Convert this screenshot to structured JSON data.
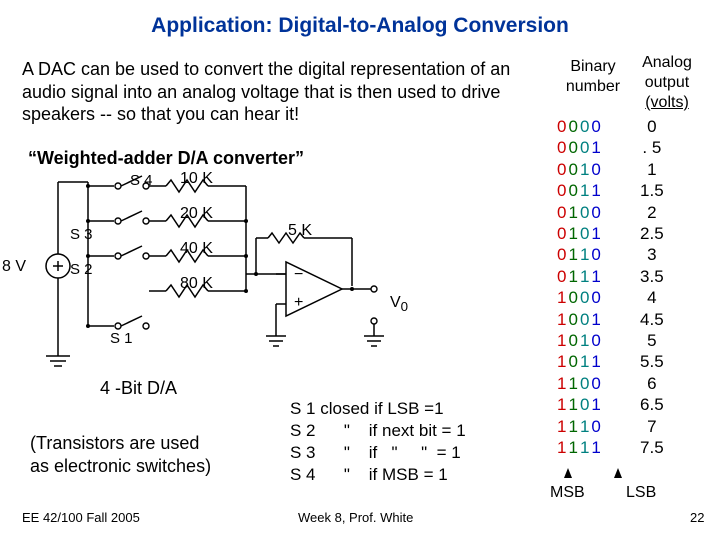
{
  "title": "Application: Digital-to-Analog Conversion",
  "intro": "A DAC can be used to convert the digital representation of an audio signal into an analog voltage that is then used to drive speakers -- so that you can hear it!",
  "subhead": "“Weighted-adder D/A converter”",
  "labels": {
    "vsrc": "8 V",
    "s1": "S 1",
    "s2": "S 2",
    "s3": "S 3",
    "s4": "S 4",
    "r10": "10 K",
    "r20": "20 K",
    "r40": "40 K",
    "r80": "80 K",
    "r5": "5 K",
    "vout": "V",
    "vout_sub": "0",
    "minus": "−",
    "plus": "+"
  },
  "dabit": "4 -Bit D/A",
  "transnote1": "(Transistors are used",
  "transnote2": " as electronic switches)",
  "switch_legend": "S 1 closed if LSB =1\nS 2      \"    if next bit = 1\nS 3      \"    if   \"     \"  = 1\nS 4      \"    if MSB = 1",
  "footer_l": "EE 42/100 Fall 2005",
  "footer_c": "Week 8, Prof. White",
  "footer_r": "22",
  "table": {
    "head_binary": "Binary",
    "head_number": "number",
    "head_analog": "Analog",
    "head_output": "output",
    "head_volts": "(volts)",
    "msb": "MSB",
    "lsb": "LSB",
    "rows": [
      {
        "b": [
          "0",
          "0",
          "0",
          "0"
        ],
        "v": "0"
      },
      {
        "b": [
          "0",
          "0",
          "0",
          "1"
        ],
        "v": ". 5"
      },
      {
        "b": [
          "0",
          "0",
          "1",
          "0"
        ],
        "v": "1"
      },
      {
        "b": [
          "0",
          "0",
          "1",
          "1"
        ],
        "v": "1.5"
      },
      {
        "b": [
          "0",
          "1",
          "0",
          "0"
        ],
        "v": "2"
      },
      {
        "b": [
          "0",
          "1",
          "0",
          "1"
        ],
        "v": "2.5"
      },
      {
        "b": [
          "0",
          "1",
          "1",
          "0"
        ],
        "v": "3"
      },
      {
        "b": [
          "0",
          "1",
          "1",
          "1"
        ],
        "v": "3.5"
      },
      {
        "b": [
          "1",
          "0",
          "0",
          "0"
        ],
        "v": "4"
      },
      {
        "b": [
          "1",
          "0",
          "0",
          "1"
        ],
        "v": "4.5"
      },
      {
        "b": [
          "1",
          "0",
          "1",
          "0"
        ],
        "v": "5"
      },
      {
        "b": [
          "1",
          "0",
          "1",
          "1"
        ],
        "v": "5.5"
      },
      {
        "b": [
          "1",
          "1",
          "0",
          "0"
        ],
        "v": "6"
      },
      {
        "b": [
          "1",
          "1",
          "0",
          "1"
        ],
        "v": "6.5"
      },
      {
        "b": [
          "1",
          "1",
          "1",
          "0"
        ],
        "v": "7"
      },
      {
        "b": [
          "1",
          "1",
          "1",
          "1"
        ],
        "v": "7.5"
      }
    ]
  },
  "colors": {
    "bit_msb": "#cc0000",
    "bit_2": "#006600",
    "bit_1": "#008080",
    "bit_lsb": "#0000cc",
    "title": "#003399"
  }
}
